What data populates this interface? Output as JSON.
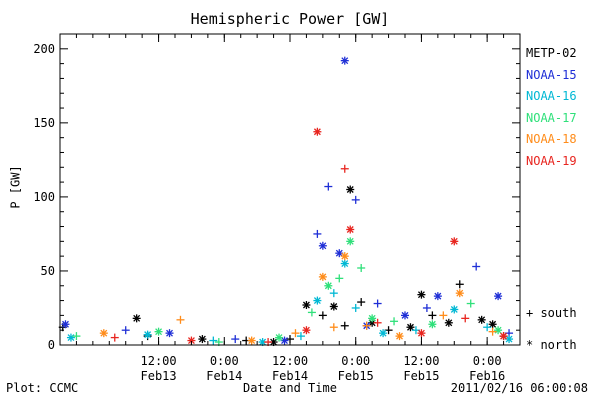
{
  "chart_data": {
    "type": "scatter",
    "title": "Hemispheric Power [GW]",
    "xlabel": "Date and Time",
    "ylabel": "P [GW]",
    "ylim": [
      0,
      210
    ],
    "yticks": [
      0,
      50,
      100,
      150,
      200
    ],
    "xlim": [
      "2011-02-12 18:00",
      "2011-02-16 06:00"
    ],
    "xticks": [
      {
        "time": "2011-02-13 12:00",
        "label": "12:00",
        "date": "Feb13"
      },
      {
        "time": "2011-02-14 00:00",
        "label": "0:00",
        "date": "Feb14"
      },
      {
        "time": "2011-02-14 12:00",
        "label": "12:00",
        "date": "Feb14"
      },
      {
        "time": "2011-02-15 00:00",
        "label": "0:00",
        "date": "Feb15"
      },
      {
        "time": "2011-02-15 12:00",
        "label": "12:00",
        "date": "Feb15"
      },
      {
        "time": "2011-02-16 00:00",
        "label": "0:00",
        "date": "Feb16"
      }
    ],
    "legend_position": "right",
    "marker_legend": [
      {
        "marker": "+",
        "label": "south"
      },
      {
        "marker": "*",
        "label": "north"
      }
    ],
    "series": [
      {
        "name": "METP-02",
        "color": "#000000",
        "points": [
          {
            "x": "2011-02-12 18:30",
            "y": 12,
            "m": "+"
          },
          {
            "x": "2011-02-13 08:00",
            "y": 18,
            "m": "*"
          },
          {
            "x": "2011-02-13 10:00",
            "y": 6,
            "m": "+"
          },
          {
            "x": "2011-02-13 20:00",
            "y": 4,
            "m": "*"
          },
          {
            "x": "2011-02-14 04:00",
            "y": 3,
            "m": "+"
          },
          {
            "x": "2011-02-14 09:00",
            "y": 2,
            "m": "*"
          },
          {
            "x": "2011-02-14 12:00",
            "y": 4,
            "m": "+"
          },
          {
            "x": "2011-02-14 15:00",
            "y": 27,
            "m": "*"
          },
          {
            "x": "2011-02-14 18:00",
            "y": 20,
            "m": "+"
          },
          {
            "x": "2011-02-14 20:00",
            "y": 26,
            "m": "*"
          },
          {
            "x": "2011-02-14 22:00",
            "y": 13,
            "m": "+"
          },
          {
            "x": "2011-02-14 23:00",
            "y": 105,
            "m": "*"
          },
          {
            "x": "2011-02-15 01:00",
            "y": 29,
            "m": "+"
          },
          {
            "x": "2011-02-15 03:00",
            "y": 15,
            "m": "*"
          },
          {
            "x": "2011-02-15 06:00",
            "y": 10,
            "m": "+"
          },
          {
            "x": "2011-02-15 10:00",
            "y": 12,
            "m": "*"
          },
          {
            "x": "2011-02-15 12:00",
            "y": 34,
            "m": "*"
          },
          {
            "x": "2011-02-15 14:00",
            "y": 20,
            "m": "+"
          },
          {
            "x": "2011-02-15 17:00",
            "y": 15,
            "m": "*"
          },
          {
            "x": "2011-02-15 19:00",
            "y": 41,
            "m": "+"
          },
          {
            "x": "2011-02-15 23:00",
            "y": 17,
            "m": "*"
          },
          {
            "x": "2011-02-16 01:00",
            "y": 14,
            "m": "*"
          },
          {
            "x": "2011-02-16 03:00",
            "y": 6,
            "m": "+"
          }
        ]
      },
      {
        "name": "NOAA-15",
        "color": "#1f2fd6",
        "points": [
          {
            "x": "2011-02-12 19:00",
            "y": 14,
            "m": "*"
          },
          {
            "x": "2011-02-13 06:00",
            "y": 10,
            "m": "+"
          },
          {
            "x": "2011-02-13 14:00",
            "y": 8,
            "m": "*"
          },
          {
            "x": "2011-02-14 02:00",
            "y": 4,
            "m": "+"
          },
          {
            "x": "2011-02-14 11:00",
            "y": 3,
            "m": "*"
          },
          {
            "x": "2011-02-14 17:00",
            "y": 75,
            "m": "+"
          },
          {
            "x": "2011-02-14 18:00",
            "y": 67,
            "m": "*"
          },
          {
            "x": "2011-02-14 19:00",
            "y": 107,
            "m": "+"
          },
          {
            "x": "2011-02-14 21:00",
            "y": 62,
            "m": "*"
          },
          {
            "x": "2011-02-14 22:00",
            "y": 192,
            "m": "*"
          },
          {
            "x": "2011-02-15 00:00",
            "y": 98,
            "m": "+"
          },
          {
            "x": "2011-02-15 02:00",
            "y": 13,
            "m": "*"
          },
          {
            "x": "2011-02-15 04:00",
            "y": 28,
            "m": "+"
          },
          {
            "x": "2011-02-15 09:00",
            "y": 20,
            "m": "*"
          },
          {
            "x": "2011-02-15 13:00",
            "y": 25,
            "m": "+"
          },
          {
            "x": "2011-02-15 15:00",
            "y": 33,
            "m": "*"
          },
          {
            "x": "2011-02-15 22:00",
            "y": 53,
            "m": "+"
          },
          {
            "x": "2011-02-16 02:00",
            "y": 33,
            "m": "*"
          },
          {
            "x": "2011-02-16 04:00",
            "y": 8,
            "m": "+"
          }
        ]
      },
      {
        "name": "NOAA-16",
        "color": "#00b8d4",
        "points": [
          {
            "x": "2011-02-12 20:00",
            "y": 5,
            "m": "*"
          },
          {
            "x": "2011-02-13 10:00",
            "y": 7,
            "m": "*"
          },
          {
            "x": "2011-02-13 22:00",
            "y": 3,
            "m": "+"
          },
          {
            "x": "2011-02-14 07:00",
            "y": 2,
            "m": "*"
          },
          {
            "x": "2011-02-14 14:00",
            "y": 6,
            "m": "+"
          },
          {
            "x": "2011-02-14 17:00",
            "y": 30,
            "m": "*"
          },
          {
            "x": "2011-02-14 20:00",
            "y": 35,
            "m": "+"
          },
          {
            "x": "2011-02-14 22:00",
            "y": 55,
            "m": "*"
          },
          {
            "x": "2011-02-15 00:00",
            "y": 25,
            "m": "+"
          },
          {
            "x": "2011-02-15 05:00",
            "y": 8,
            "m": "*"
          },
          {
            "x": "2011-02-15 11:00",
            "y": 10,
            "m": "+"
          },
          {
            "x": "2011-02-15 18:00",
            "y": 24,
            "m": "*"
          },
          {
            "x": "2011-02-16 00:00",
            "y": 12,
            "m": "+"
          },
          {
            "x": "2011-02-16 04:00",
            "y": 4,
            "m": "*"
          }
        ]
      },
      {
        "name": "NOAA-17",
        "color": "#2fe07a",
        "points": [
          {
            "x": "2011-02-12 21:00",
            "y": 6,
            "m": "+"
          },
          {
            "x": "2011-02-13 12:00",
            "y": 9,
            "m": "*"
          },
          {
            "x": "2011-02-13 23:00",
            "y": 2,
            "m": "+"
          },
          {
            "x": "2011-02-14 10:00",
            "y": 5,
            "m": "*"
          },
          {
            "x": "2011-02-14 16:00",
            "y": 22,
            "m": "+"
          },
          {
            "x": "2011-02-14 19:00",
            "y": 40,
            "m": "*"
          },
          {
            "x": "2011-02-14 21:00",
            "y": 45,
            "m": "+"
          },
          {
            "x": "2011-02-14 23:00",
            "y": 70,
            "m": "*"
          },
          {
            "x": "2011-02-15 01:00",
            "y": 52,
            "m": "+"
          },
          {
            "x": "2011-02-15 03:00",
            "y": 18,
            "m": "*"
          },
          {
            "x": "2011-02-15 07:00",
            "y": 16,
            "m": "+"
          },
          {
            "x": "2011-02-15 14:00",
            "y": 14,
            "m": "*"
          },
          {
            "x": "2011-02-15 21:00",
            "y": 28,
            "m": "+"
          },
          {
            "x": "2011-02-16 02:00",
            "y": 10,
            "m": "*"
          }
        ]
      },
      {
        "name": "NOAA-18",
        "color": "#ff8c1a",
        "points": [
          {
            "x": "2011-02-13 02:00",
            "y": 8,
            "m": "*"
          },
          {
            "x": "2011-02-13 16:00",
            "y": 17,
            "m": "+"
          },
          {
            "x": "2011-02-14 05:00",
            "y": 3,
            "m": "*"
          },
          {
            "x": "2011-02-14 13:00",
            "y": 8,
            "m": "+"
          },
          {
            "x": "2011-02-14 18:00",
            "y": 46,
            "m": "*"
          },
          {
            "x": "2011-02-14 20:00",
            "y": 12,
            "m": "+"
          },
          {
            "x": "2011-02-14 22:00",
            "y": 60,
            "m": "*"
          },
          {
            "x": "2011-02-15 02:00",
            "y": 13,
            "m": "+"
          },
          {
            "x": "2011-02-15 08:00",
            "y": 6,
            "m": "*"
          },
          {
            "x": "2011-02-15 16:00",
            "y": 20,
            "m": "+"
          },
          {
            "x": "2011-02-15 19:00",
            "y": 35,
            "m": "*"
          },
          {
            "x": "2011-02-16 01:00",
            "y": 9,
            "m": "+"
          }
        ]
      },
      {
        "name": "NOAA-19",
        "color": "#e8251f",
        "points": [
          {
            "x": "2011-02-13 04:00",
            "y": 5,
            "m": "+"
          },
          {
            "x": "2011-02-13 18:00",
            "y": 3,
            "m": "*"
          },
          {
            "x": "2011-02-14 08:00",
            "y": 2,
            "m": "+"
          },
          {
            "x": "2011-02-14 15:00",
            "y": 10,
            "m": "*"
          },
          {
            "x": "2011-02-14 17:00",
            "y": 144,
            "m": "*"
          },
          {
            "x": "2011-02-14 22:00",
            "y": 119,
            "m": "+"
          },
          {
            "x": "2011-02-14 23:00",
            "y": 78,
            "m": "*"
          },
          {
            "x": "2011-02-15 04:00",
            "y": 15,
            "m": "+"
          },
          {
            "x": "2011-02-15 12:00",
            "y": 8,
            "m": "*"
          },
          {
            "x": "2011-02-15 18:00",
            "y": 70,
            "m": "*"
          },
          {
            "x": "2011-02-15 20:00",
            "y": 18,
            "m": "+"
          },
          {
            "x": "2011-02-16 03:00",
            "y": 6,
            "m": "*"
          }
        ]
      }
    ]
  },
  "footer": {
    "plot_credit": "Plot: CCMC",
    "timestamp": "2011/02/16 06:00:08"
  },
  "legend": {
    "south_text": "+ south",
    "north_text": "* north"
  }
}
